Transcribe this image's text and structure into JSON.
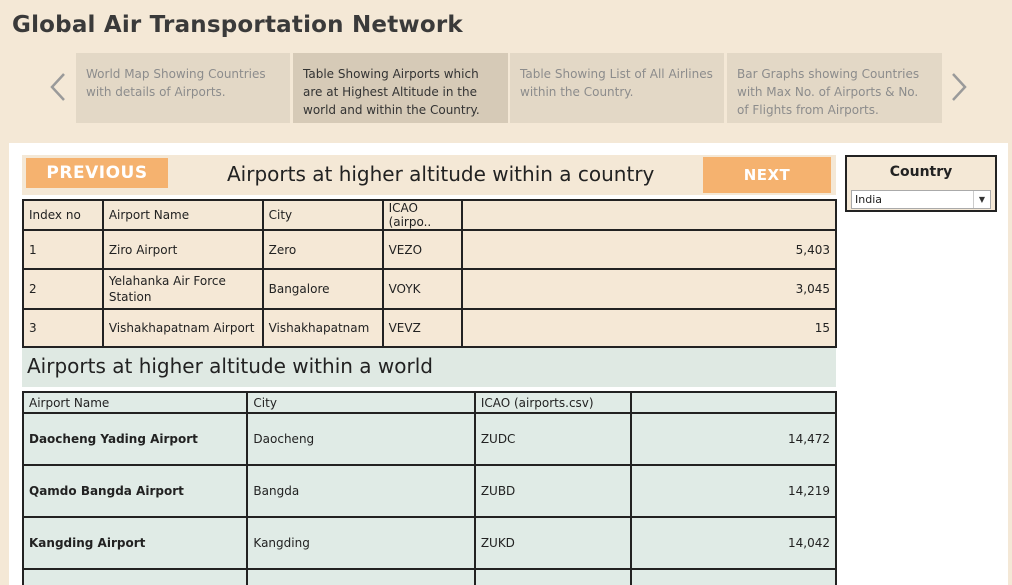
{
  "app": {
    "title": "Global Air Transportation Network"
  },
  "story": {
    "points": [
      "World Map Showing Countries with details of Airports.",
      "Table Showing Airports which are at Highest Altitude in the world and within the Country.",
      "Table Showing List of All Airlines within the Country.",
      "Bar Graphs showing Countries with Max No. of Airports & No. of Flights from Airports."
    ],
    "active_index": 1
  },
  "buttons": {
    "previous": "PREVIOUS",
    "next": "NEXT"
  },
  "country_section": {
    "title": "Airports at higher altitude within a country",
    "columns": [
      "Index no",
      "Airport Name",
      "City",
      "ICAO (airpo..",
      ""
    ],
    "rows": [
      {
        "index": "1",
        "airport": "Ziro Airport",
        "city": "Zero",
        "icao": "VEZO",
        "altitude": "5,403"
      },
      {
        "index": "2",
        "airport": "Yelahanka Air Force Station",
        "city": "Bangalore",
        "icao": "VOYK",
        "altitude": "3,045"
      },
      {
        "index": "3",
        "airport": "Vishakhapatnam Airport",
        "city": "Vishakhapatnam",
        "icao": "VEVZ",
        "altitude": "15"
      }
    ]
  },
  "world_section": {
    "title": "Airports at higher altitude within a world",
    "columns": [
      "Airport Name",
      "City",
      "ICAO (airports.csv)",
      ""
    ],
    "rows": [
      {
        "airport": "Daocheng Yading Airport",
        "city": "Daocheng",
        "icao": "ZUDC",
        "altitude": "14,472"
      },
      {
        "airport": "Qamdo Bangda Airport",
        "city": "Bangda",
        "icao": "ZUBD",
        "altitude": "14,219"
      },
      {
        "airport": "Kangding Airport",
        "city": "Kangding",
        "icao": "ZUKD",
        "altitude": "14,042"
      }
    ]
  },
  "filter": {
    "label": "Country",
    "value": "India"
  },
  "colors": {
    "accent": "#f5b26f",
    "background": "#f4e8d6",
    "world_band": "#dfe9e3"
  }
}
